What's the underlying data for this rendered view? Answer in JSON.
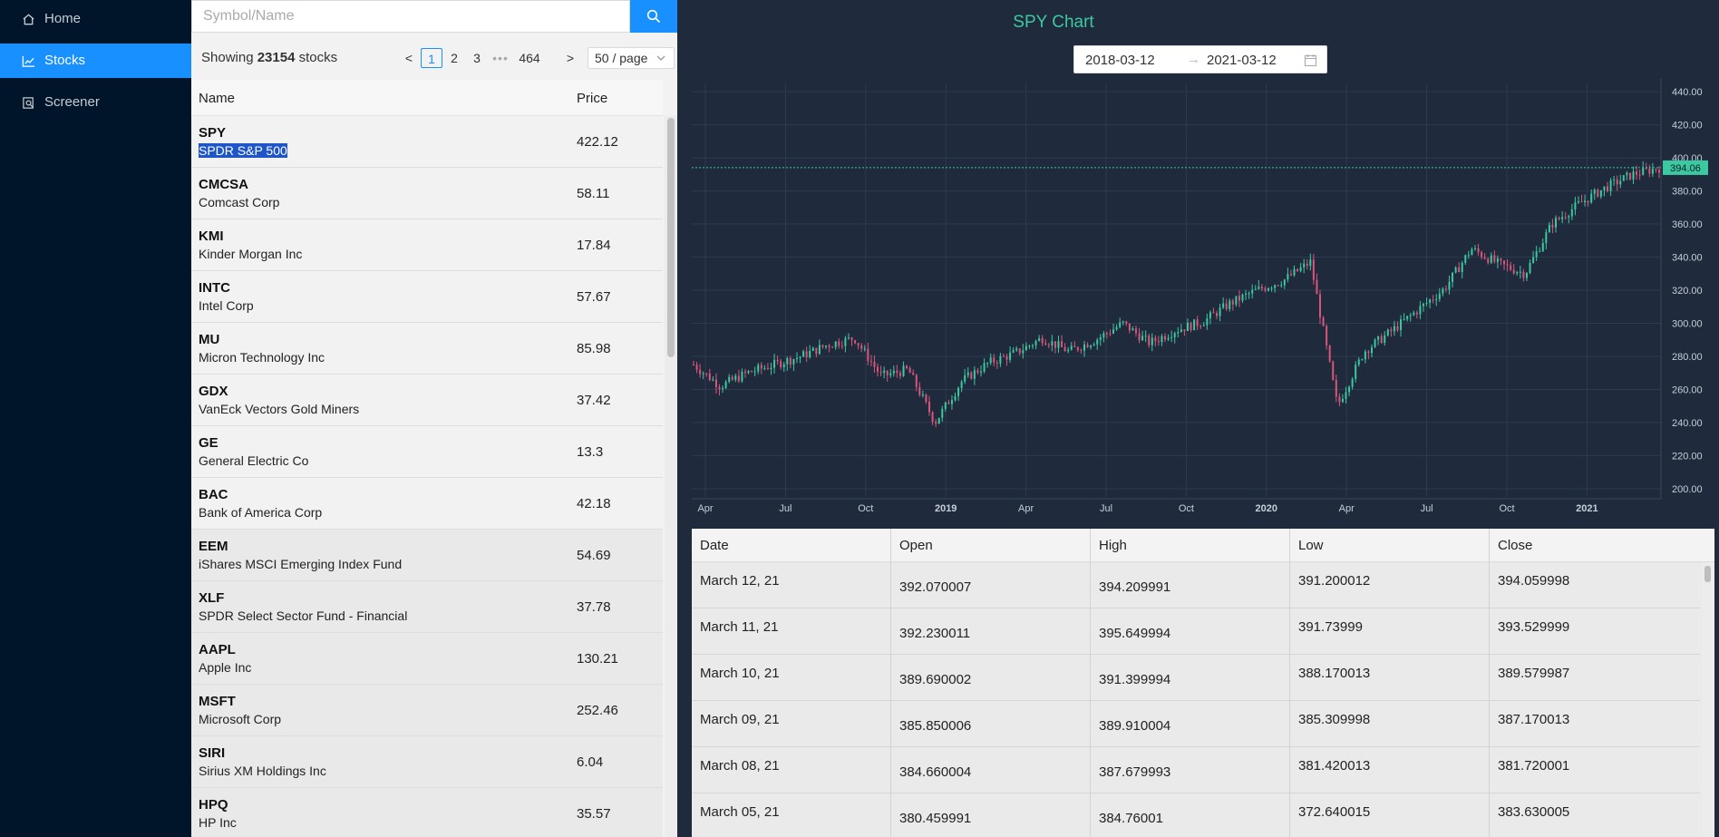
{
  "sidebar": {
    "items": [
      {
        "label": "Home",
        "icon": "home-icon",
        "active": false
      },
      {
        "label": "Stocks",
        "icon": "stock-chart-icon",
        "active": true
      },
      {
        "label": "Screener",
        "icon": "screener-icon",
        "active": false
      }
    ]
  },
  "search": {
    "placeholder": "Symbol/Name",
    "value": ""
  },
  "pagination": {
    "showing_prefix": "Showing",
    "total": "23154",
    "showing_suffix": "stocks",
    "prev": "<",
    "pages": [
      "1",
      "2",
      "3"
    ],
    "ellipsis": "•••",
    "last": "464",
    "next": ">",
    "page_size": "50 / page",
    "current": "1"
  },
  "stock_table": {
    "headers": {
      "name": "Name",
      "price": "Price"
    },
    "rows": [
      {
        "symbol": "SPY",
        "name": "SPDR S&P 500",
        "price": "422.12",
        "selected": true
      },
      {
        "symbol": "CMCSA",
        "name": "Comcast Corp",
        "price": "58.11"
      },
      {
        "symbol": "KMI",
        "name": "Kinder Morgan Inc",
        "price": "17.84"
      },
      {
        "symbol": "INTC",
        "name": "Intel Corp",
        "price": "57.67"
      },
      {
        "symbol": "MU",
        "name": "Micron Technology Inc",
        "price": "85.98"
      },
      {
        "symbol": "GDX",
        "name": "VanEck Vectors Gold Miners",
        "price": "37.42"
      },
      {
        "symbol": "GE",
        "name": "General Electric Co",
        "price": "13.3"
      },
      {
        "symbol": "BAC",
        "name": "Bank of America Corp",
        "price": "42.18"
      },
      {
        "symbol": "EEM",
        "name": "iShares MSCI Emerging Index Fund",
        "price": "54.69"
      },
      {
        "symbol": "XLF",
        "name": "SPDR Select Sector Fund - Financial",
        "price": "37.78"
      },
      {
        "symbol": "AAPL",
        "name": "Apple Inc",
        "price": "130.21"
      },
      {
        "symbol": "MSFT",
        "name": "Microsoft Corp",
        "price": "252.46"
      },
      {
        "symbol": "SIRI",
        "name": "Sirius XM Holdings Inc",
        "price": "6.04"
      },
      {
        "symbol": "HPQ",
        "name": "HP Inc",
        "price": "35.57"
      }
    ]
  },
  "chart": {
    "title": "SPY Chart",
    "range_start": "2018-03-12",
    "range_arrow": "→",
    "range_end": "2021-03-12",
    "up_color": "#3cc9a0",
    "down_color": "#d9567a"
  },
  "chart_data": {
    "type": "line",
    "title": "SPY Chart",
    "xlabel": "",
    "ylabel": "",
    "ylim": [
      195,
      445
    ],
    "yticks": [
      "200.00",
      "220.00",
      "240.00",
      "260.00",
      "280.00",
      "300.00",
      "320.00",
      "340.00",
      "360.00",
      "380.00",
      "400.00",
      "420.00",
      "440.00"
    ],
    "xticks": [
      "Apr",
      "Jul",
      "Oct",
      "2019",
      "Apr",
      "Jul",
      "Oct",
      "2020",
      "Apr",
      "Jul",
      "Oct",
      "2021"
    ],
    "last_price_label": "394.06",
    "last_price": 394.06,
    "grid": true,
    "x": [
      "2018-03",
      "2018-04",
      "2018-05",
      "2018-06",
      "2018-07",
      "2018-08",
      "2018-09",
      "2018-10",
      "2018-11",
      "2018-12",
      "2019-01",
      "2019-02",
      "2019-03",
      "2019-04",
      "2019-05",
      "2019-06",
      "2019-07",
      "2019-08",
      "2019-09",
      "2019-10",
      "2019-11",
      "2019-12",
      "2020-01",
      "2020-02",
      "2020-03",
      "2020-04",
      "2020-05",
      "2020-06",
      "2020-07",
      "2020-08",
      "2020-09",
      "2020-10",
      "2020-11",
      "2020-12",
      "2021-01",
      "2021-02",
      "2021-03"
    ],
    "series": [
      {
        "values": [
          275,
          262,
          270,
          275,
          280,
          287,
          291,
          268,
          272,
          240,
          265,
          276,
          282,
          291,
          283,
          290,
          300,
          288,
          296,
          301,
          312,
          320,
          326,
          337,
          250,
          283,
          295,
          308,
          321,
          345,
          336,
          330,
          360,
          372,
          382,
          390,
          394
        ]
      }
    ]
  },
  "price_table": {
    "headers": [
      "Date",
      "Open",
      "High",
      "Low",
      "Close"
    ],
    "rows": [
      [
        "March 12, 21",
        "392.070007",
        "394.209991",
        "391.200012",
        "394.059998"
      ],
      [
        "March 11, 21",
        "392.230011",
        "395.649994",
        "391.73999",
        "393.529999"
      ],
      [
        "March 10, 21",
        "389.690002",
        "391.399994",
        "388.170013",
        "389.579987"
      ],
      [
        "March 09, 21",
        "385.850006",
        "389.910004",
        "385.309998",
        "387.170013"
      ],
      [
        "March 08, 21",
        "384.660004",
        "387.679993",
        "381.420013",
        "381.720001"
      ],
      [
        "March 05, 21",
        "380.459991",
        "384.76001",
        "372.640015",
        "383.630005"
      ]
    ]
  }
}
